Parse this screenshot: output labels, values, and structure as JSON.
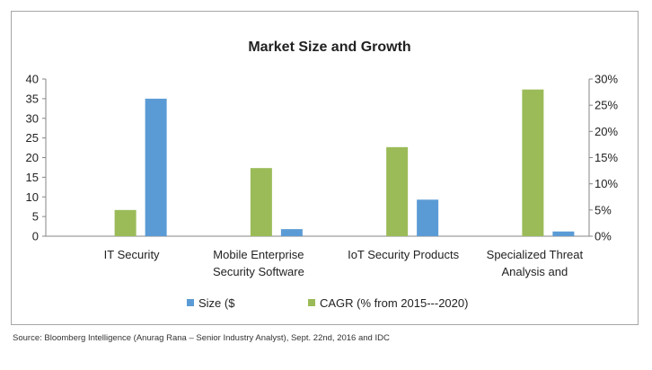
{
  "chart_data": {
    "type": "bar",
    "title": "Market Size and Growth",
    "categories": [
      [
        "IT Security"
      ],
      [
        "Mobile Enterprise",
        "Security  Software"
      ],
      [
        "IoT Security Products"
      ],
      [
        "Specialized Threat",
        "Analysis and"
      ]
    ],
    "series": [
      {
        "name": "Size ($",
        "axis": "left",
        "color": "#5b9bd5",
        "values": [
          35,
          1.8,
          9.3,
          1.2
        ]
      },
      {
        "name": "CAGR  (% from  2015---2020)",
        "axis": "right",
        "color": "#9bbb59",
        "values": [
          5,
          13,
          17,
          28
        ]
      }
    ],
    "y_left": {
      "ylim": [
        0,
        40
      ],
      "ticks": [
        0,
        5,
        10,
        15,
        20,
        25,
        30,
        35,
        40
      ],
      "tick_labels": [
        "0",
        "5",
        "10",
        "15",
        "20",
        "25",
        "30",
        "35",
        "40"
      ]
    },
    "y_right": {
      "ylim": [
        0,
        30
      ],
      "ticks": [
        0,
        5,
        10,
        15,
        20,
        25,
        30
      ],
      "tick_labels": [
        "0%",
        "5%",
        "10%",
        "15%",
        "20%",
        "25%",
        "30%"
      ]
    },
    "legend_placement": "bottom",
    "grid": false
  },
  "source": "Source: Bloomberg Intelligence (Anurag Rana – Senior Industry Analyst), Sept. 22nd, 2016 and IDC"
}
